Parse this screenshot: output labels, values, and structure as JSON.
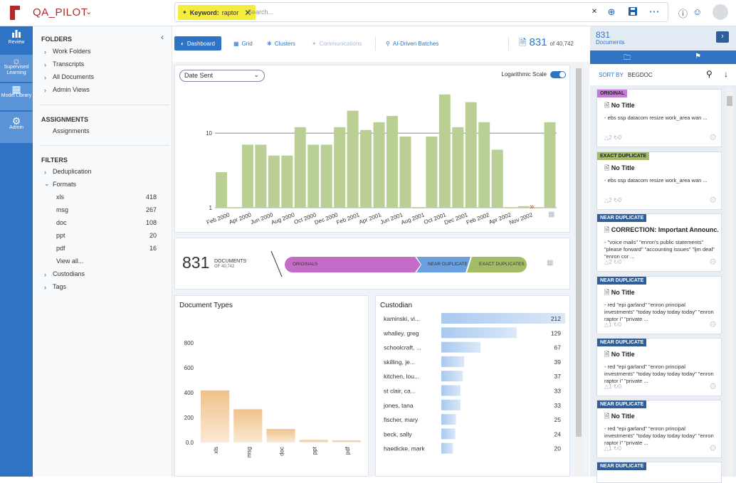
{
  "header": {
    "project": "QA_PILOT",
    "chip_key": "Keyword:",
    "chip_value": "raptor",
    "search_placeholder": "Search..."
  },
  "rail": [
    {
      "label": "Review",
      "icon": "bar-chart-icon"
    },
    {
      "label": "Supervised Learning",
      "icon": "lightbulb-icon"
    },
    {
      "label": "Model Library",
      "icon": "library-icon"
    },
    {
      "label": "Admin",
      "icon": "gear-icon"
    }
  ],
  "sidebar": {
    "folders_h": "FOLDERS",
    "folders": [
      "Work Folders",
      "Transcripts",
      "All Documents",
      "Admin Views"
    ],
    "assign_h": "ASSIGNMENTS",
    "assign_item": "Assignments",
    "filters_h": "FILTERS",
    "dedup": "Deduplication",
    "formats": "Formats",
    "formats_items": [
      {
        "name": "xls",
        "count": "418"
      },
      {
        "name": "msg",
        "count": "267"
      },
      {
        "name": "doc",
        "count": "108"
      },
      {
        "name": "ppt",
        "count": "20"
      },
      {
        "name": "pdf",
        "count": "16"
      }
    ],
    "view_all": "View all...",
    "custodians": "Custodians",
    "tags": "Tags"
  },
  "tabs": [
    {
      "label": "Dashboard",
      "icon": "dashboard-icon",
      "state": "active"
    },
    {
      "label": "Grid",
      "icon": "grid-icon",
      "state": "normal"
    },
    {
      "label": "Clusters",
      "icon": "clusters-icon",
      "state": "normal"
    },
    {
      "label": "Communications",
      "icon": "communications-icon",
      "state": "disabled"
    },
    {
      "label": "AI-Driven Batches",
      "icon": "ai-batches-icon",
      "state": "normal"
    }
  ],
  "doc_count": {
    "value": "831",
    "of": "of 40,742"
  },
  "timeline": {
    "selector": "Date Sent",
    "log_label": "Logarithmic Scale",
    "log_on": true
  },
  "summary": {
    "count": "831",
    "label": "DOCUMENTS",
    "of": "OF 40,742",
    "seg_originals": "ORIGINALS",
    "seg_near": "NEAR DUPLICATE",
    "seg_exact": "EXACT DUPLICATES"
  },
  "doc_types_title": "Document Types",
  "custodian_title": "Custodian",
  "chart_data": [
    {
      "type": "bar",
      "scale": "log",
      "ylim": [
        1,
        40
      ],
      "ytick_labels": [
        "1",
        "10"
      ],
      "xtick_labels": [
        "Feb 2000",
        "Apr 2000",
        "Jun 2000",
        "Aug 2000",
        "Oct 2000",
        "Dec 2000",
        "Feb 2001",
        "Apr 2001",
        "Jun 2001",
        "Aug 2001",
        "Oct 2001",
        "Dec 2001",
        "Feb 2002",
        "Apr 2002",
        "Nov 2002"
      ],
      "values": [
        3,
        1,
        7,
        7,
        5,
        5,
        12,
        7,
        7,
        12,
        20,
        11,
        14,
        17,
        9,
        1,
        9,
        33,
        12,
        26,
        14,
        6,
        1,
        1.05,
        1,
        14
      ],
      "color": "#b9cf93"
    },
    {
      "type": "bar",
      "categories": [
        "xls",
        "msg",
        "doc",
        "ppt",
        "pdf"
      ],
      "values": [
        418,
        267,
        108,
        20,
        16
      ],
      "ylim": [
        0,
        800
      ],
      "yticks": [
        "0.0",
        "200",
        "400",
        "600",
        "800"
      ],
      "color": "#f3c995"
    },
    {
      "type": "bar",
      "orientation": "horizontal",
      "categories": [
        "kaminski, vi...",
        "whalley, greg",
        "schoolcraft, ...",
        "skilling, je...",
        "kitchen, lou...",
        "st clair, ca...",
        "jones, tana",
        "fischer, mary",
        "beck, sally",
        "haedicke, mark"
      ],
      "values": [
        212,
        129,
        67,
        39,
        37,
        33,
        33,
        25,
        24,
        20
      ],
      "value_labels": [
        "212",
        "129",
        "67",
        "39",
        "37",
        "33",
        "33",
        "25",
        "24",
        "20"
      ],
      "xlim": [
        0,
        212
      ],
      "color": "#b7d2f0"
    }
  ],
  "right_panel": {
    "count": "831",
    "label": "Documents",
    "sort_label": "SORT BY",
    "sort_field": "BEGDOC",
    "cards": [
      {
        "tag": "ORIGINAL",
        "tag_color": "#c47ad6",
        "title": "No Title",
        "snippet": "- ebs ssp datacom resize work_area wan ...",
        "a": "2",
        "b": "0"
      },
      {
        "tag": "EXACT DUPLICATE",
        "tag_color": "#a3bd66",
        "title": "No Title",
        "snippet": "- ebs ssp datacom resize work_area wan ...",
        "a": "2",
        "b": "0"
      },
      {
        "tag": "NEAR DUPLICATE",
        "tag_color": "#2f5f9a",
        "title": "CORRECTION: Important Announc...",
        "snippet": "- \"voice mails\" \"enron's public statements\" \"please forward\" \"accounting issues\" \"ljm deal\" \"enron cor ...",
        "a": "2",
        "b": "0"
      },
      {
        "tag": "NEAR DUPLICATE",
        "tag_color": "#2f5f9a",
        "title": "No Title",
        "snippet": "- red \"epi garland\" \"enron principal investments\" \"today today today today\" \"enron raptor i\" \"private ...",
        "a": "1",
        "b": "0"
      },
      {
        "tag": "NEAR DUPLICATE",
        "tag_color": "#2f5f9a",
        "title": "No Title",
        "snippet": "- red \"epi garland\" \"enron principal investments\" \"today today today today\" \"enron raptor i\" \"private ...",
        "a": "1",
        "b": "0"
      },
      {
        "tag": "NEAR DUPLICATE",
        "tag_color": "#2f5f9a",
        "title": "No Title",
        "snippet": "- red \"epi garland\" \"enron principal investments\" \"today today today today\" \"enron raptor i\" \"private ...",
        "a": "1",
        "b": "0"
      },
      {
        "tag": "NEAR DUPLICATE",
        "tag_color": "#2f5f9a",
        "title": "",
        "snippet": "",
        "a": "",
        "b": ""
      }
    ]
  }
}
